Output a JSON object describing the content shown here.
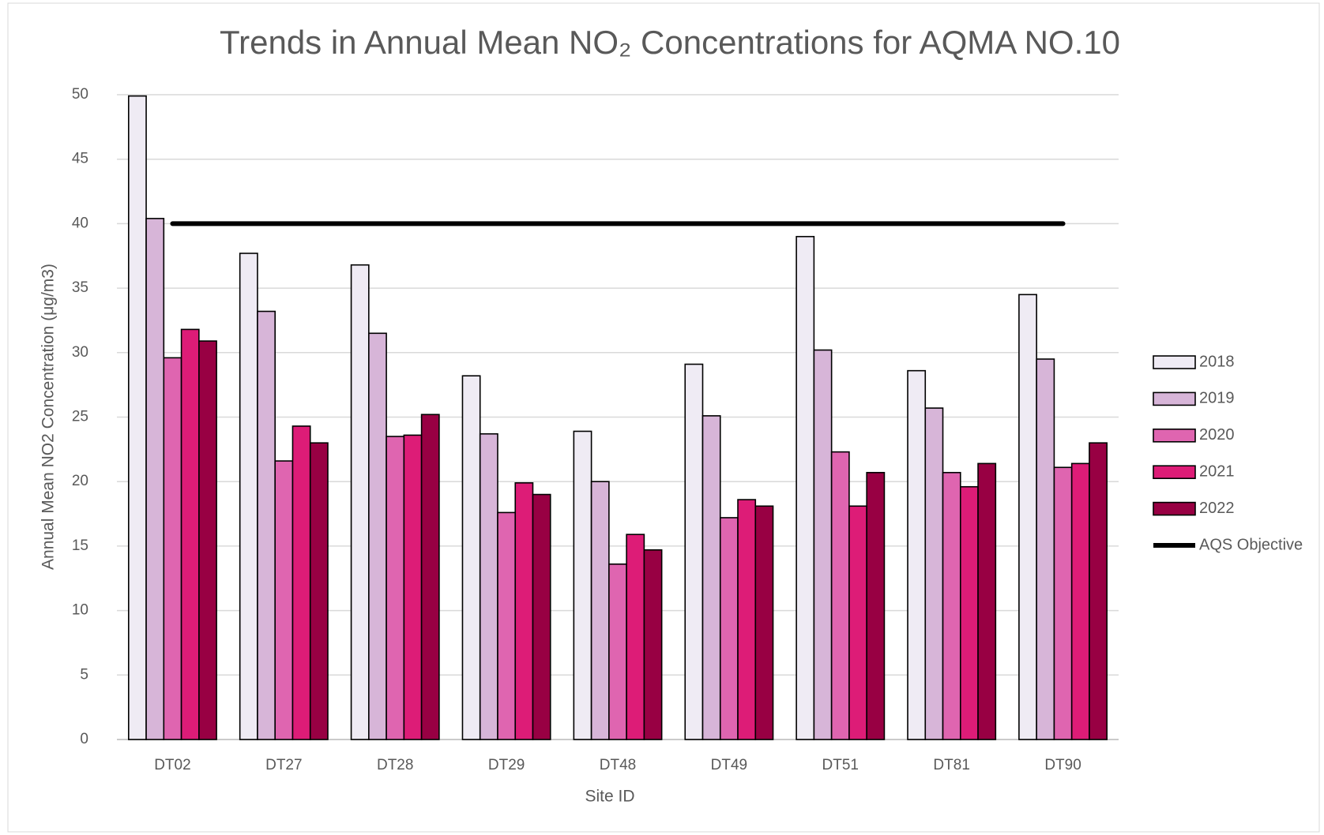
{
  "chart_data": {
    "type": "bar",
    "title": "Trends in Annual Mean NO₂ Concentrations for AQMA NO.10",
    "x_label": "Site ID",
    "y_label": "Annual Mean NO2 Concentration (μg/m3)",
    "categories": [
      "DT02",
      "DT27",
      "DT28",
      "DT29",
      "DT48",
      "DT49",
      "DT51",
      "DT81",
      "DT90"
    ],
    "series": [
      {
        "name": "2018",
        "color": "#efebf4",
        "values": [
          49.9,
          37.7,
          36.8,
          28.2,
          23.9,
          29.1,
          39.0,
          28.6,
          34.5
        ]
      },
      {
        "name": "2019",
        "color": "#d7b5d8",
        "values": [
          40.4,
          33.2,
          31.5,
          23.7,
          20.0,
          25.1,
          30.2,
          25.7,
          29.5
        ]
      },
      {
        "name": "2020",
        "color": "#df65b0",
        "values": [
          29.6,
          21.6,
          23.5,
          17.6,
          13.6,
          17.2,
          22.3,
          20.7,
          21.1
        ]
      },
      {
        "name": "2021",
        "color": "#dd1c77",
        "values": [
          31.8,
          24.3,
          23.6,
          19.9,
          15.9,
          18.6,
          18.1,
          19.6,
          21.4
        ]
      },
      {
        "name": "2022",
        "color": "#980043",
        "values": [
          30.9,
          23.0,
          25.2,
          19.0,
          14.7,
          18.1,
          20.7,
          21.4,
          23.0
        ]
      },
      {
        "name": "AQS Objective",
        "color": "#000000",
        "type": "line",
        "values": [
          40,
          40,
          40,
          40,
          40,
          40,
          40,
          40,
          40
        ]
      }
    ],
    "ylim": [
      0,
      50
    ],
    "yticks": [
      0,
      5,
      10,
      15,
      20,
      25,
      30,
      35,
      40,
      45,
      50
    ],
    "grid": true,
    "legend": "right"
  }
}
